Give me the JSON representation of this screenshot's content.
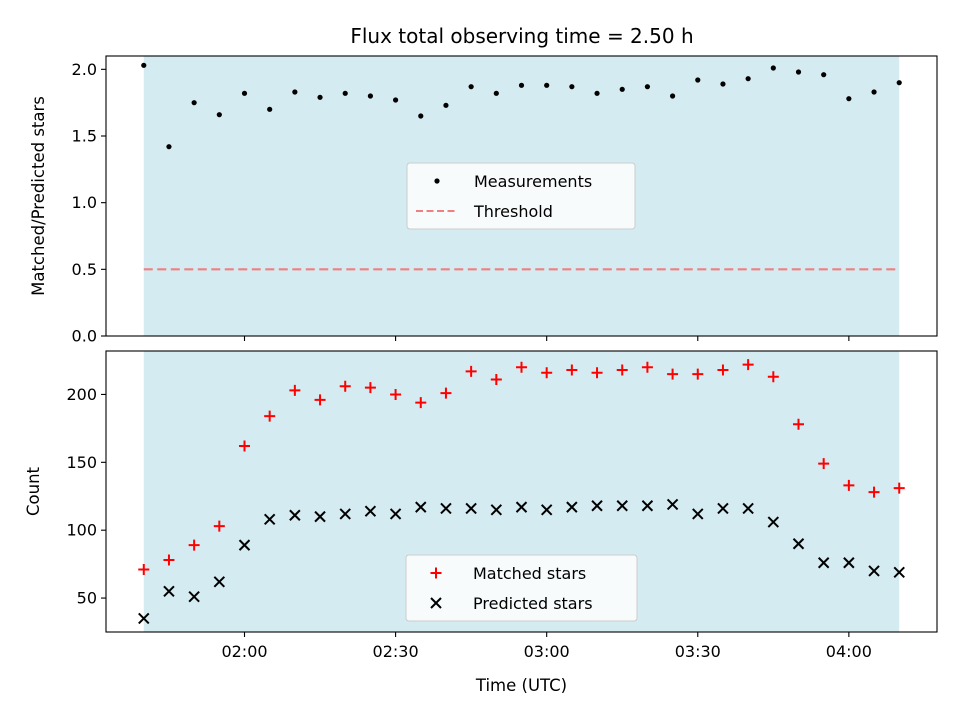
{
  "chart_data": {
    "title": "Flux total observing time = 2.50 h",
    "xlabel": "Time (UTC)",
    "x_ticks": [
      "02:00",
      "02:30",
      "03:00",
      "03:30",
      "04:00"
    ],
    "x_tick_minutes": [
      120,
      150,
      180,
      210,
      240
    ],
    "xlim_minutes": [
      92.5,
      257.5
    ],
    "observing_window_minutes": [
      100,
      250
    ],
    "window_color": "#d4ebf1",
    "x_minutes": [
      100,
      105,
      110,
      115,
      120,
      125,
      130,
      135,
      140,
      145,
      150,
      155,
      160,
      165,
      170,
      175,
      180,
      185,
      190,
      195,
      200,
      205,
      210,
      215,
      220,
      225,
      230,
      235,
      240,
      245,
      250
    ],
    "panels": [
      {
        "type": "scatter",
        "ylabel": "Matched/Predicted stars",
        "ylim": [
          0,
          2.1
        ],
        "y_ticks": [
          0.0,
          0.5,
          1.0,
          1.5,
          2.0
        ],
        "y_tick_labels": [
          "0.0",
          "0.5",
          "1.0",
          "1.5",
          "2.0"
        ],
        "series": [
          {
            "name": "Measurements",
            "marker": "dot",
            "color": "#000000",
            "values": [
              2.03,
              1.42,
              1.75,
              1.66,
              1.82,
              1.7,
              1.83,
              1.79,
              1.82,
              1.8,
              1.77,
              1.65,
              1.73,
              1.87,
              1.82,
              1.88,
              1.88,
              1.87,
              1.82,
              1.85,
              1.87,
              1.8,
              1.92,
              1.89,
              1.93,
              2.01,
              1.98,
              1.96,
              1.78,
              1.83,
              1.9
            ]
          }
        ],
        "threshold": {
          "name": "Threshold",
          "value": 0.5,
          "color": "#f08080"
        },
        "legend": {
          "placement": "center",
          "entries": [
            "Measurements",
            "Threshold"
          ]
        }
      },
      {
        "type": "scatter",
        "ylabel": "Count",
        "ylim": [
          25,
          232
        ],
        "y_ticks": [
          50,
          100,
          150,
          200
        ],
        "y_tick_labels": [
          "50",
          "100",
          "150",
          "200"
        ],
        "series": [
          {
            "name": "Matched stars",
            "marker": "plus",
            "color": "#ff0000",
            "values": [
              71,
              78,
              89,
              103,
              162,
              184,
              203,
              196,
              206,
              205,
              200,
              194,
              201,
              217,
              211,
              220,
              216,
              218,
              216,
              218,
              220,
              215,
              215,
              218,
              222,
              213,
              178,
              149,
              133,
              128,
              131
            ]
          },
          {
            "name": "Predicted stars",
            "marker": "x",
            "color": "#000000",
            "values": [
              35,
              55,
              51,
              62,
              89,
              108,
              111,
              110,
              112,
              114,
              112,
              117,
              116,
              116,
              115,
              117,
              115,
              117,
              118,
              118,
              118,
              119,
              112,
              116,
              116,
              106,
              90,
              76,
              76,
              70,
              69
            ]
          }
        ],
        "legend": {
          "placement": "lower center",
          "entries": [
            "Matched stars",
            "Predicted stars"
          ]
        }
      }
    ]
  }
}
